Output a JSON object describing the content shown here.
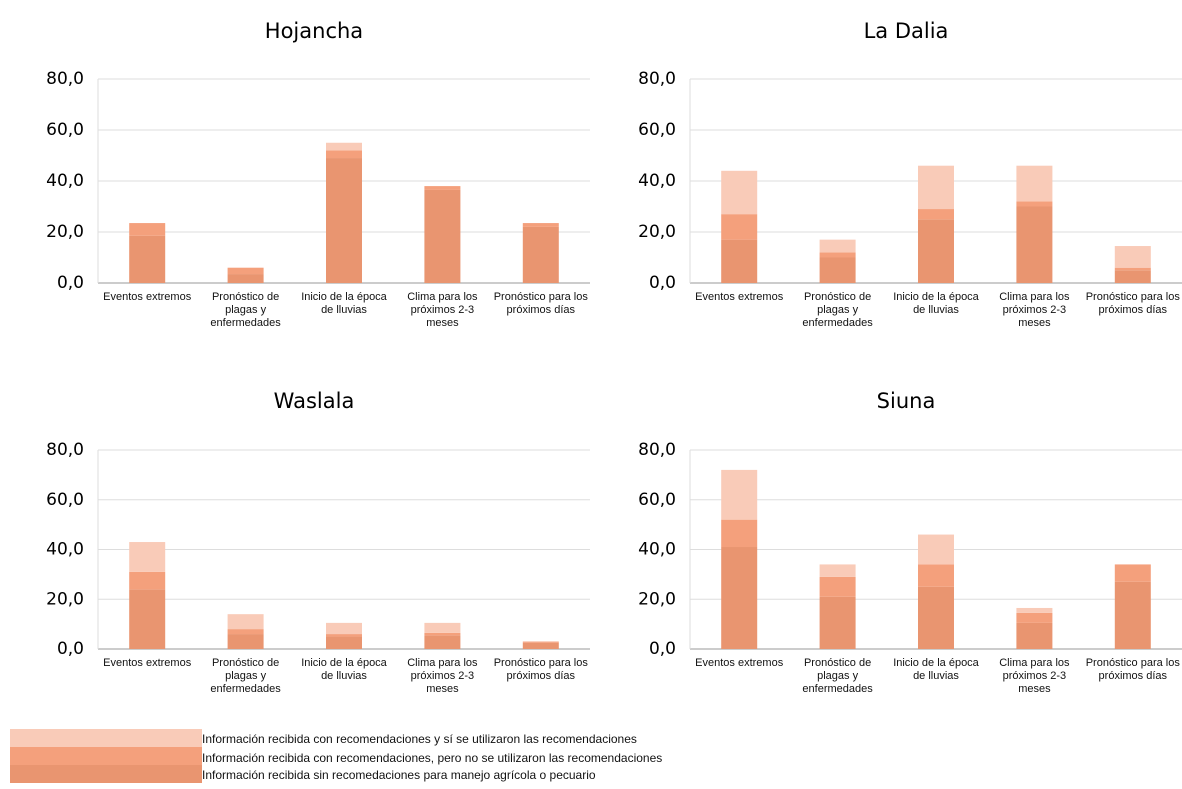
{
  "chart_data": [
    {
      "type": "bar",
      "stacked": true,
      "title": "Hojancha",
      "categories": [
        "Eventos extremos",
        "Pronóstico de plagas y enfermedades",
        "Inicio de la época de lluvias",
        "Clima para los próximos 2-3 meses",
        "Pronóstico para los próximos días"
      ],
      "series": [
        {
          "name": "Información recibida sin recomedaciones para manejo agrícola o pecuario",
          "color": "#e99570",
          "values": [
            18.5,
            3.5,
            49,
            36.5,
            22
          ]
        },
        {
          "name": "Información recibida con recomendaciones, pero no se utilizaron las recomendaciones",
          "color": "#f4a07c",
          "values": [
            5,
            2.5,
            3,
            1.5,
            1.5
          ]
        },
        {
          "name": "Información recibida con recomendaciones y sí se utilizaron las recomendaciones",
          "color": "#f9cbb8",
          "values": [
            0,
            0,
            3,
            0,
            0
          ]
        }
      ],
      "ylim": [
        0,
        80
      ],
      "yticks": [
        {
          "value": 0,
          "label": "0,0"
        },
        {
          "value": 20,
          "label": "20,0"
        },
        {
          "value": 40,
          "label": "40,0"
        },
        {
          "value": 60,
          "label": "60,0"
        },
        {
          "value": 80,
          "label": "80,0"
        }
      ],
      "grid": true
    },
    {
      "type": "bar",
      "stacked": true,
      "title": "La Dalia",
      "categories": [
        "Eventos extremos",
        "Pronóstico de plagas y enfermedades",
        "Inicio de la época de lluvias",
        "Clima para los próximos 2-3 meses",
        "Pronóstico para los próximos días"
      ],
      "series": [
        {
          "color": "#e99570",
          "values": [
            17,
            10,
            25,
            30,
            5
          ]
        },
        {
          "color": "#f4a07c",
          "values": [
            10,
            2,
            4,
            2,
            1
          ]
        },
        {
          "color": "#f9cbb8",
          "values": [
            17,
            5,
            17,
            14,
            8.5
          ]
        }
      ],
      "ylim": [
        0,
        80
      ],
      "yticks": [
        {
          "value": 0,
          "label": "0,0"
        },
        {
          "value": 20,
          "label": "20,0"
        },
        {
          "value": 40,
          "label": "40,0"
        },
        {
          "value": 60,
          "label": "60,0"
        },
        {
          "value": 80,
          "label": "80,0"
        }
      ],
      "grid": true
    },
    {
      "type": "bar",
      "stacked": true,
      "title": "Waslala",
      "categories": [
        "Eventos extremos",
        "Pronóstico de plagas y enfermedades",
        "Inicio de la época de lluvias",
        "Clima para los próximos 2-3 meses",
        "Pronóstico para los próximos días"
      ],
      "series": [
        {
          "color": "#e99570",
          "values": [
            24,
            6,
            5,
            5.5,
            2.5
          ]
        },
        {
          "color": "#f4a07c",
          "values": [
            7,
            2,
            1,
            1,
            0.5
          ]
        },
        {
          "color": "#f9cbb8",
          "values": [
            12,
            6,
            4.5,
            4,
            0
          ]
        }
      ],
      "ylim": [
        0,
        80
      ],
      "yticks": [
        {
          "value": 0,
          "label": "0,0"
        },
        {
          "value": 20,
          "label": "20,0"
        },
        {
          "value": 40,
          "label": "40,0"
        },
        {
          "value": 60,
          "label": "60,0"
        },
        {
          "value": 80,
          "label": "80,0"
        }
      ],
      "grid": true
    },
    {
      "type": "bar",
      "stacked": true,
      "title": "Siuna",
      "categories": [
        "Eventos extremos",
        "Pronóstico de plagas y enfermedades",
        "Inicio de la época de lluvias",
        "Clima para los próximos 2-3 meses",
        "Pronóstico para los próximos días"
      ],
      "series": [
        {
          "color": "#e99570",
          "values": [
            41,
            21,
            25,
            10.5,
            27
          ]
        },
        {
          "color": "#f4a07c",
          "values": [
            11,
            8,
            9,
            4,
            7
          ]
        },
        {
          "color": "#f9cbb8",
          "values": [
            20,
            5,
            12,
            2,
            0
          ]
        }
      ],
      "ylim": [
        0,
        80
      ],
      "yticks": [
        {
          "value": 0,
          "label": "0,0"
        },
        {
          "value": 20,
          "label": "20,0"
        },
        {
          "value": 40,
          "label": "40,0"
        },
        {
          "value": 60,
          "label": "60,0"
        },
        {
          "value": 80,
          "label": "80,0"
        }
      ],
      "grid": true
    }
  ]
}
